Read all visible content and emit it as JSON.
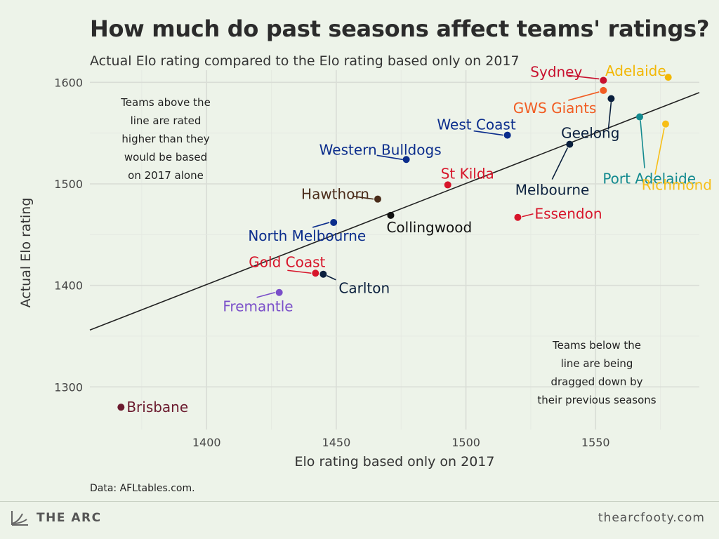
{
  "header": {
    "title": "How much do past seasons affect teams' ratings?",
    "subtitle": "Actual Elo rating compared to the Elo rating based only on 2017"
  },
  "footer": {
    "source": "Data: AFLtables.com.",
    "brand": "THE ARC",
    "site": "thearcfooty.com"
  },
  "chart_data": {
    "type": "scatter",
    "xlabel": "Elo rating based only on 2017",
    "ylabel": "Actual Elo rating",
    "xlim": [
      1355,
      1590
    ],
    "ylim": [
      1258,
      1612
    ],
    "x_ticks": [
      1400,
      1450,
      1500,
      1550
    ],
    "y_ticks": [
      1300,
      1400,
      1500,
      1600
    ],
    "grid": true,
    "reference_line": {
      "from": [
        1355,
        1356
      ],
      "to": [
        1590,
        1590
      ]
    },
    "annotations": [
      {
        "lines": [
          "Teams above the",
          "line are rated",
          "higher than they",
          "would be based",
          "on 2017 alone"
        ]
      },
      {
        "lines": [
          "Teams below the",
          "line are being",
          "dragged down by",
          "their previous seasons"
        ]
      }
    ],
    "points": [
      {
        "name": "Sydney",
        "x": 1553,
        "y": 1602,
        "color": "#c8102e"
      },
      {
        "name": "Adelaide",
        "x": 1578,
        "y": 1605,
        "color": "#f2b705"
      },
      {
        "name": "GWS Giants",
        "x": 1553,
        "y": 1592,
        "color": "#f15c22"
      },
      {
        "name": "Geelong",
        "x": 1556,
        "y": 1584,
        "color": "#0a1f3d"
      },
      {
        "name": "Port Adelaide",
        "x": 1567,
        "y": 1566,
        "color": "#138a8f"
      },
      {
        "name": "Richmond",
        "x": 1577,
        "y": 1559,
        "color": "#f7be16"
      },
      {
        "name": "West Coast",
        "x": 1516,
        "y": 1548,
        "color": "#0b2d8c"
      },
      {
        "name": "Melbourne",
        "x": 1540,
        "y": 1539,
        "color": "#0a1f3d"
      },
      {
        "name": "Western Bulldogs",
        "x": 1477,
        "y": 1524,
        "color": "#0b2d8c"
      },
      {
        "name": "St Kilda",
        "x": 1493,
        "y": 1499,
        "color": "#d7152a"
      },
      {
        "name": "Hawthorn",
        "x": 1466,
        "y": 1485,
        "color": "#4a2c1a"
      },
      {
        "name": "Collingwood",
        "x": 1471,
        "y": 1469,
        "color": "#111111"
      },
      {
        "name": "Essendon",
        "x": 1520,
        "y": 1467,
        "color": "#d7152a"
      },
      {
        "name": "North Melbourne",
        "x": 1449,
        "y": 1462,
        "color": "#0b2d8c"
      },
      {
        "name": "Gold Coast",
        "x": 1442,
        "y": 1412,
        "color": "#d7152a"
      },
      {
        "name": "Carlton",
        "x": 1445,
        "y": 1411,
        "color": "#0a1f3d"
      },
      {
        "name": "Fremantle",
        "x": 1428,
        "y": 1393,
        "color": "#7a4fc9"
      },
      {
        "name": "Brisbane",
        "x": 1367,
        "y": 1280,
        "color": "#6b1a2e"
      }
    ]
  }
}
